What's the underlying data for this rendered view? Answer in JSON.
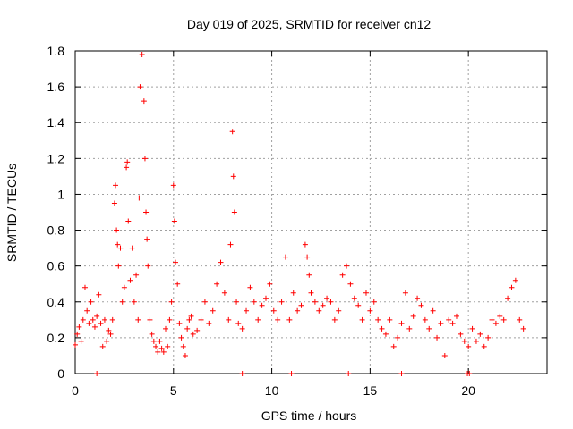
{
  "chart_data": {
    "type": "scatter",
    "title": "Day 019 of 2025, SRMTID for receiver cn12",
    "xlabel": "GPS time / hours",
    "ylabel": "SRMTID / TECUs",
    "xlim": [
      0,
      24
    ],
    "ylim": [
      0,
      1.8
    ],
    "grid": true,
    "marker": "+",
    "color": "#ff0000",
    "x_ticks": [
      0,
      5,
      10,
      15,
      20
    ],
    "x_tick_labels": [
      "0",
      "5",
      "10",
      "15",
      "20"
    ],
    "y_ticks": [
      0,
      0.2,
      0.4,
      0.6,
      0.8,
      1.0,
      1.2,
      1.4,
      1.6,
      1.8
    ],
    "y_tick_labels": [
      "0",
      "0.2",
      "0.4",
      "0.6",
      "0.8",
      "1",
      "1.2",
      "1.4",
      "1.6",
      "1.8"
    ],
    "series": [
      {
        "name": "SRMTID",
        "x": [
          0.0,
          0.1,
          0.2,
          0.3,
          0.4,
          0.5,
          0.6,
          0.7,
          0.8,
          0.9,
          1.0,
          1.1,
          1.2,
          1.3,
          1.4,
          1.5,
          1.6,
          1.7,
          1.8,
          1.9,
          2.0,
          2.05,
          2.1,
          2.15,
          2.2,
          2.3,
          2.4,
          2.5,
          2.6,
          2.65,
          2.7,
          2.8,
          2.9,
          3.0,
          3.1,
          3.2,
          3.25,
          3.3,
          3.4,
          3.5,
          3.55,
          3.6,
          3.65,
          3.7,
          3.8,
          3.9,
          4.0,
          4.1,
          4.2,
          4.3,
          4.4,
          4.5,
          4.6,
          4.7,
          4.8,
          4.9,
          5.0,
          5.05,
          5.1,
          5.2,
          5.3,
          5.4,
          5.5,
          5.6,
          5.7,
          5.8,
          5.9,
          6.0,
          6.2,
          6.4,
          6.6,
          6.8,
          7.0,
          7.2,
          7.4,
          7.6,
          7.8,
          7.9,
          8.0,
          8.05,
          8.1,
          8.2,
          8.3,
          8.5,
          8.7,
          8.9,
          9.1,
          9.3,
          9.5,
          9.7,
          9.9,
          10.1,
          10.3,
          10.5,
          10.7,
          10.9,
          11.1,
          11.3,
          11.5,
          11.7,
          11.8,
          11.9,
          12.0,
          12.2,
          12.4,
          12.6,
          12.8,
          13.0,
          13.2,
          13.4,
          13.6,
          13.8,
          14.0,
          14.2,
          14.4,
          14.6,
          14.8,
          15.0,
          15.2,
          15.4,
          15.6,
          15.8,
          16.0,
          16.2,
          16.4,
          16.6,
          16.8,
          17.0,
          17.2,
          17.4,
          17.6,
          17.8,
          18.0,
          18.2,
          18.4,
          18.6,
          18.8,
          19.0,
          19.2,
          19.4,
          19.6,
          19.8,
          20.0,
          20.2,
          20.4,
          20.6,
          20.8,
          21.0,
          21.2,
          21.4,
          21.6,
          21.8,
          22.0,
          22.2,
          22.4,
          22.6,
          22.8,
          1.1,
          8.5,
          11.0,
          13.9,
          16.6,
          19.95,
          20.05
        ],
        "y": [
          0.16,
          0.22,
          0.26,
          0.18,
          0.3,
          0.48,
          0.35,
          0.28,
          0.4,
          0.3,
          0.26,
          0.32,
          0.44,
          0.28,
          0.15,
          0.3,
          0.18,
          0.24,
          0.22,
          0.3,
          0.95,
          1.05,
          0.8,
          0.72,
          0.6,
          0.7,
          0.4,
          0.48,
          1.15,
          1.18,
          0.85,
          0.52,
          0.7,
          0.4,
          0.55,
          0.3,
          0.98,
          1.6,
          1.78,
          1.52,
          1.2,
          0.9,
          0.75,
          0.6,
          0.3,
          0.22,
          0.18,
          0.15,
          0.12,
          0.18,
          0.14,
          0.12,
          0.25,
          0.15,
          0.3,
          0.4,
          1.05,
          0.85,
          0.62,
          0.5,
          0.28,
          0.2,
          0.15,
          0.1,
          0.25,
          0.3,
          0.32,
          0.22,
          0.24,
          0.3,
          0.4,
          0.28,
          0.35,
          0.5,
          0.62,
          0.45,
          0.3,
          0.72,
          1.35,
          1.1,
          0.9,
          0.4,
          0.28,
          0.25,
          0.35,
          0.48,
          0.4,
          0.3,
          0.38,
          0.42,
          0.5,
          0.35,
          0.3,
          0.4,
          0.65,
          0.3,
          0.45,
          0.35,
          0.38,
          0.72,
          0.65,
          0.55,
          0.45,
          0.4,
          0.35,
          0.38,
          0.42,
          0.4,
          0.3,
          0.35,
          0.55,
          0.6,
          0.5,
          0.42,
          0.38,
          0.3,
          0.45,
          0.35,
          0.4,
          0.3,
          0.25,
          0.22,
          0.3,
          0.15,
          0.2,
          0.28,
          0.45,
          0.25,
          0.32,
          0.42,
          0.38,
          0.3,
          0.25,
          0.35,
          0.2,
          0.28,
          0.1,
          0.3,
          0.28,
          0.32,
          0.22,
          0.18,
          0.15,
          0.25,
          0.18,
          0.22,
          0.15,
          0.2,
          0.3,
          0.28,
          0.32,
          0.3,
          0.42,
          0.48,
          0.52,
          0.3,
          0.25,
          0.0,
          0.0,
          0.0,
          0.0,
          0.0,
          0.0,
          0.0
        ]
      }
    ]
  }
}
